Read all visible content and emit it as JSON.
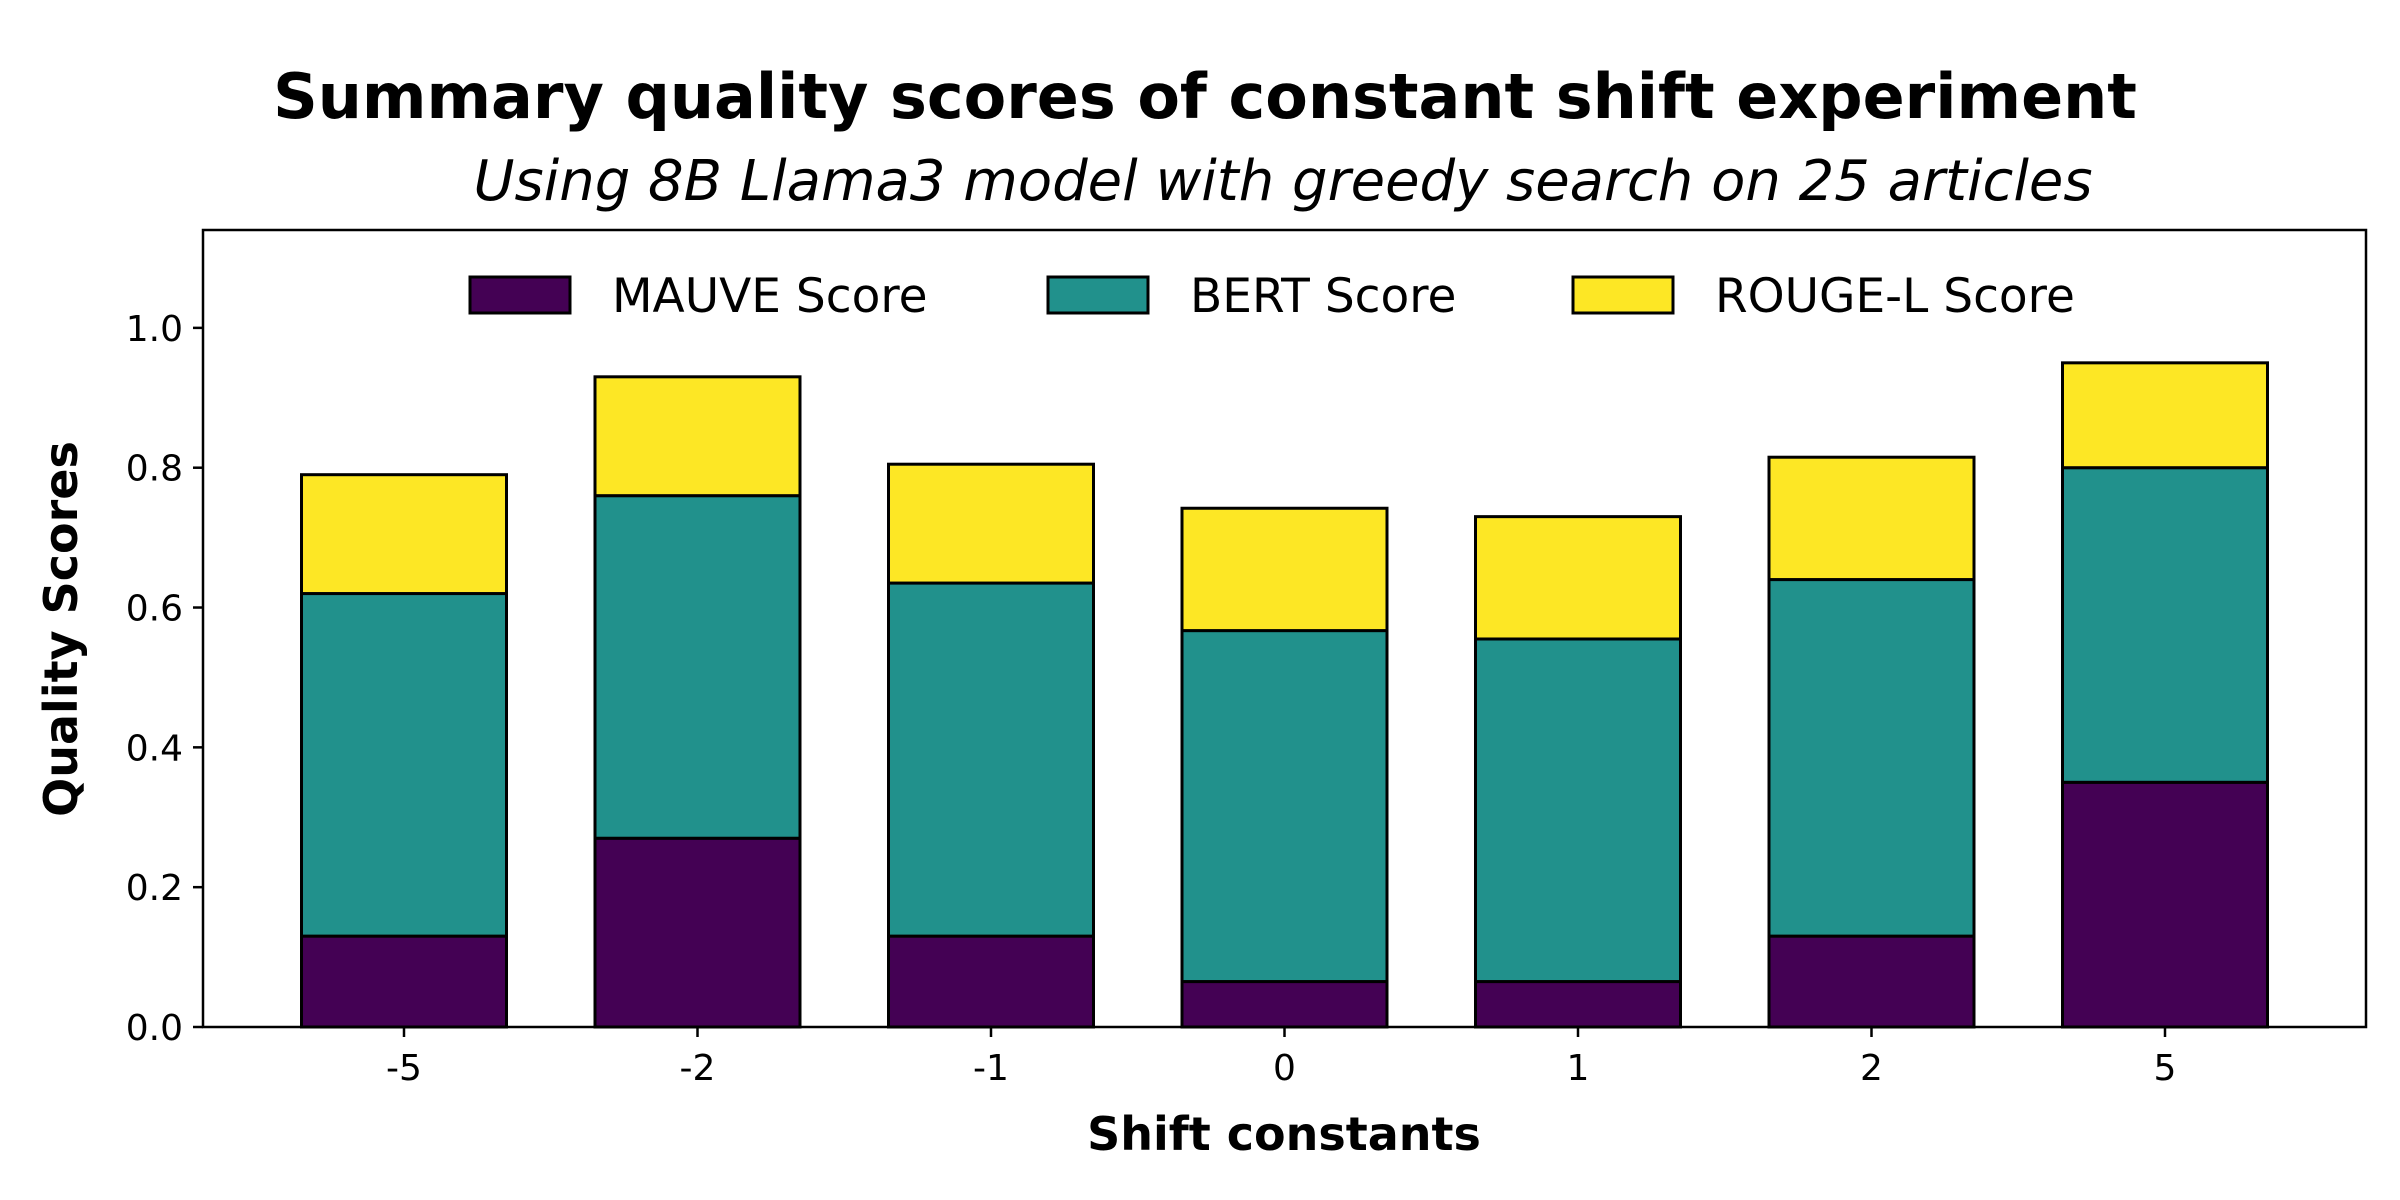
{
  "chart_data": {
    "type": "bar",
    "stacked": true,
    "title": "Summary quality scores of constant shift experiment",
    "subtitle": "Using 8B Llama3 model with greedy search on 25 articles",
    "xlabel": "Shift constants",
    "ylabel": "Quality Scores",
    "categories": [
      "-5",
      "-2",
      "-1",
      "0",
      "1",
      "2",
      "5"
    ],
    "ylim": [
      0,
      1.14
    ],
    "yticks": [
      0.0,
      0.2,
      0.4,
      0.6,
      0.8,
      1.0
    ],
    "ytick_labels": [
      "0.0",
      "0.2",
      "0.4",
      "0.6",
      "0.8",
      "1.0"
    ],
    "grid": false,
    "legend_position": "top-center",
    "series": [
      {
        "name": "MAUVE Score",
        "color": "#440154",
        "values": [
          0.13,
          0.27,
          0.13,
          0.065,
          0.065,
          0.13,
          0.35
        ]
      },
      {
        "name": "BERT Score",
        "color": "#21918c",
        "values": [
          0.49,
          0.49,
          0.505,
          0.502,
          0.49,
          0.51,
          0.45
        ]
      },
      {
        "name": "ROUGE-L Score",
        "color": "#fde725",
        "values": [
          0.17,
          0.17,
          0.17,
          0.175,
          0.175,
          0.175,
          0.15
        ]
      }
    ]
  }
}
